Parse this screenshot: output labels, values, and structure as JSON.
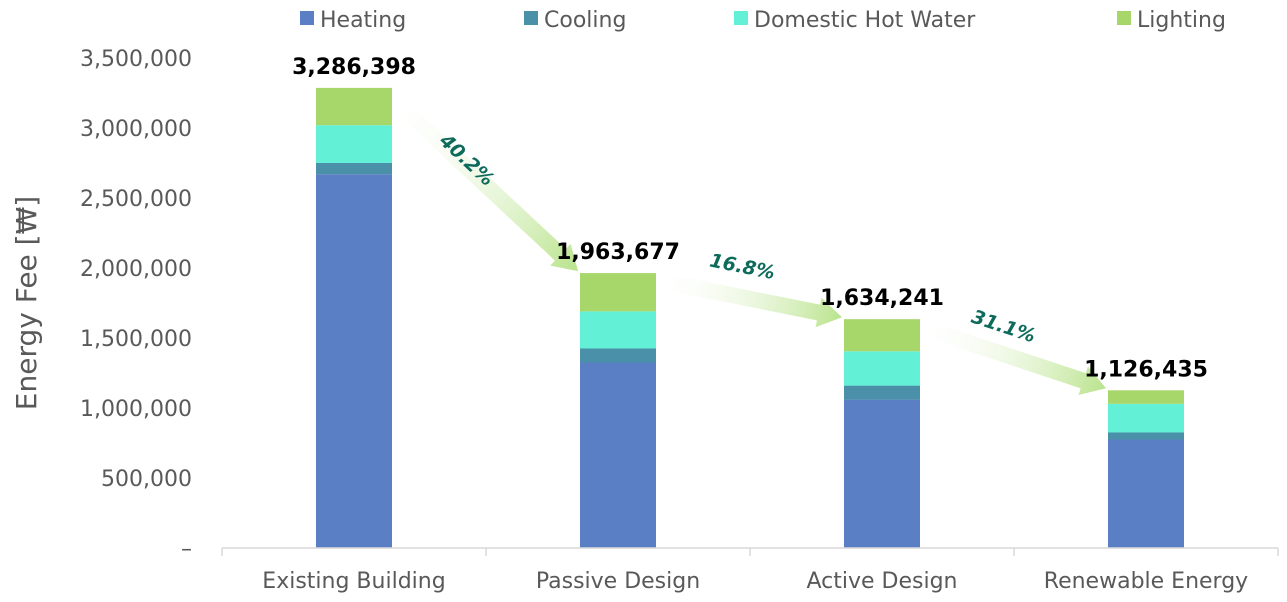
{
  "chart_data": {
    "type": "bar",
    "stacked": true,
    "categories": [
      "Existing Building",
      "Passive Design",
      "Active Design",
      "Renewable Energy"
    ],
    "series": [
      {
        "name": "Heating",
        "color": "#5b7fc4",
        "values": [
          2670000,
          1325000,
          1060000,
          775000
        ]
      },
      {
        "name": "Cooling",
        "color": "#4a90a8",
        "values": [
          80000,
          100000,
          100000,
          50000
        ]
      },
      {
        "name": "Domestic Hot Water",
        "color": "#62f0d6",
        "values": [
          270000,
          265000,
          245000,
          205000
        ]
      },
      {
        "name": "Lighting",
        "color": "#a7d66a",
        "values": [
          266398,
          273677,
          229241,
          96435
        ]
      }
    ],
    "totals": [
      "3,286,398",
      "1,963,677",
      "1,634,241",
      "1,126,435"
    ],
    "reductions": [
      "40.2%",
      "16.8%",
      "31.1%"
    ],
    "reduction_color": "#0e6b5c",
    "arrow_color": "#b9e38c",
    "ylabel": "Energy Fee [₩]",
    "ylim": [
      0,
      3500000
    ],
    "yticks": [
      {
        "value": 0,
        "label": "–"
      },
      {
        "value": 500000,
        "label": "500,000"
      },
      {
        "value": 1000000,
        "label": "1,000,000"
      },
      {
        "value": 1500000,
        "label": "1,500,000"
      },
      {
        "value": 2000000,
        "label": "2,000,000"
      },
      {
        "value": 2500000,
        "label": "2,500,000"
      },
      {
        "value": 3000000,
        "label": "3,000,000"
      },
      {
        "value": 3500000,
        "label": "3,500,000"
      }
    ],
    "grid": false,
    "legend_position": "top"
  }
}
